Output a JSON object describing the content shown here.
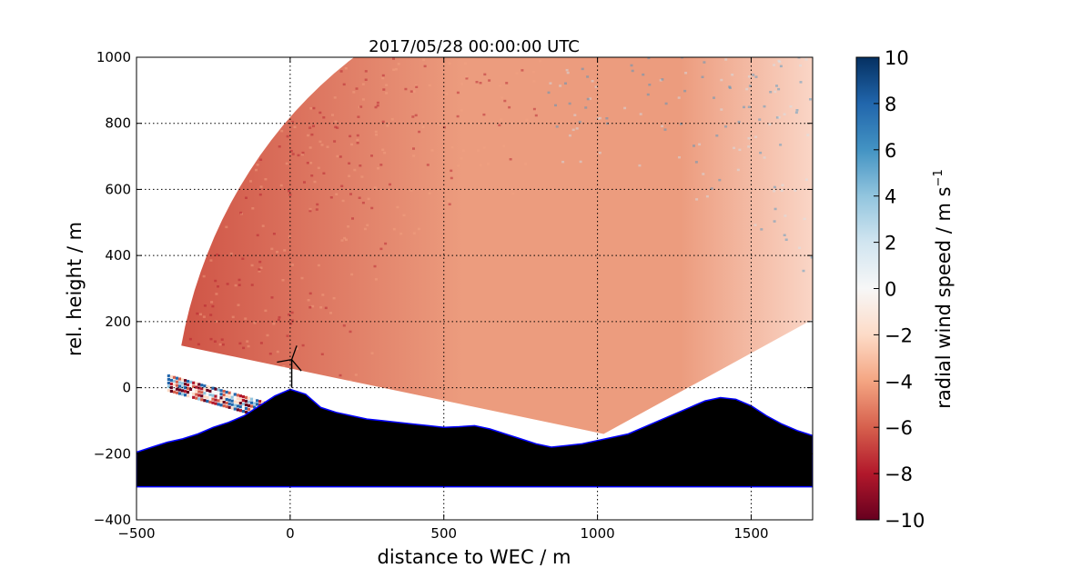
{
  "chart_data": {
    "type": "heatmap",
    "title": "2017/05/28 00:00:00 UTC",
    "xlabel": "distance to WEC / m",
    "ylabel": "rel. height / m",
    "xlim": [
      -500,
      1700
    ],
    "ylim": [
      -400,
      1000
    ],
    "xticks": [
      -500,
      0,
      500,
      1000,
      1500
    ],
    "yticks": [
      -400,
      -200,
      0,
      200,
      400,
      600,
      800,
      1000
    ],
    "xtick_labels": [
      "−500",
      "0",
      "500",
      "1000",
      "1500"
    ],
    "ytick_labels": [
      "−400",
      "−200",
      "0",
      "200",
      "400",
      "600",
      "800",
      "1000"
    ],
    "grid": true,
    "colorbar": {
      "label": "radial wind speed / m s",
      "label_exponent": "−1",
      "colormap": "RdBu",
      "range": [
        -10,
        10
      ],
      "ticks": [
        -10,
        -8,
        -6,
        -4,
        -2,
        0,
        2,
        4,
        6,
        8,
        10
      ],
      "tick_labels": [
        "−10",
        "−8",
        "−6",
        "−4",
        "−2",
        "0",
        "2",
        "4",
        "6",
        "8",
        "10"
      ],
      "colors": [
        "#67001f",
        "#b2182b",
        "#d6604d",
        "#f4a582",
        "#fddbc7",
        "#f7f7f7",
        "#d1e5f0",
        "#92c5de",
        "#4393c3",
        "#2166ac",
        "#053061"
      ]
    },
    "radar_sector": {
      "origin": [
        1020,
        -140
      ],
      "range_max_m": 1400,
      "azimuth_min_deg": 27,
      "azimuth_max_deg": 169,
      "near_field_value": -1.5,
      "colors": {
        "far_left": "#cf5446",
        "mid": "#ec9c7e",
        "near": "#fde2d6",
        "right": "#c0dceb",
        "far_right": "#8fc3dd"
      }
    },
    "terrain": {
      "fill_color": "#000000",
      "outline_color": "#0000ff",
      "base_height": -300,
      "x": [
        -500,
        -450,
        -400,
        -350,
        -300,
        -250,
        -200,
        -150,
        -100,
        -50,
        0,
        50,
        100,
        150,
        200,
        250,
        300,
        350,
        400,
        450,
        500,
        550,
        600,
        650,
        700,
        750,
        800,
        850,
        900,
        950,
        1000,
        1050,
        1100,
        1150,
        1200,
        1250,
        1300,
        1350,
        1400,
        1450,
        1500,
        1550,
        1600,
        1650,
        1700
      ],
      "y": [
        -195,
        -180,
        -165,
        -155,
        -140,
        -120,
        -105,
        -85,
        -55,
        -25,
        -5,
        -20,
        -60,
        -75,
        -85,
        -95,
        -100,
        -105,
        -110,
        -115,
        -120,
        -118,
        -115,
        -125,
        -140,
        -155,
        -170,
        -180,
        -175,
        -170,
        -160,
        -150,
        -140,
        -120,
        -100,
        -80,
        -60,
        -40,
        -30,
        -35,
        -55,
        -85,
        -110,
        -130,
        -145
      ]
    },
    "turbine": {
      "x": 5,
      "hub_height": 85,
      "rotor_radius": 45,
      "color": "#000000"
    }
  }
}
